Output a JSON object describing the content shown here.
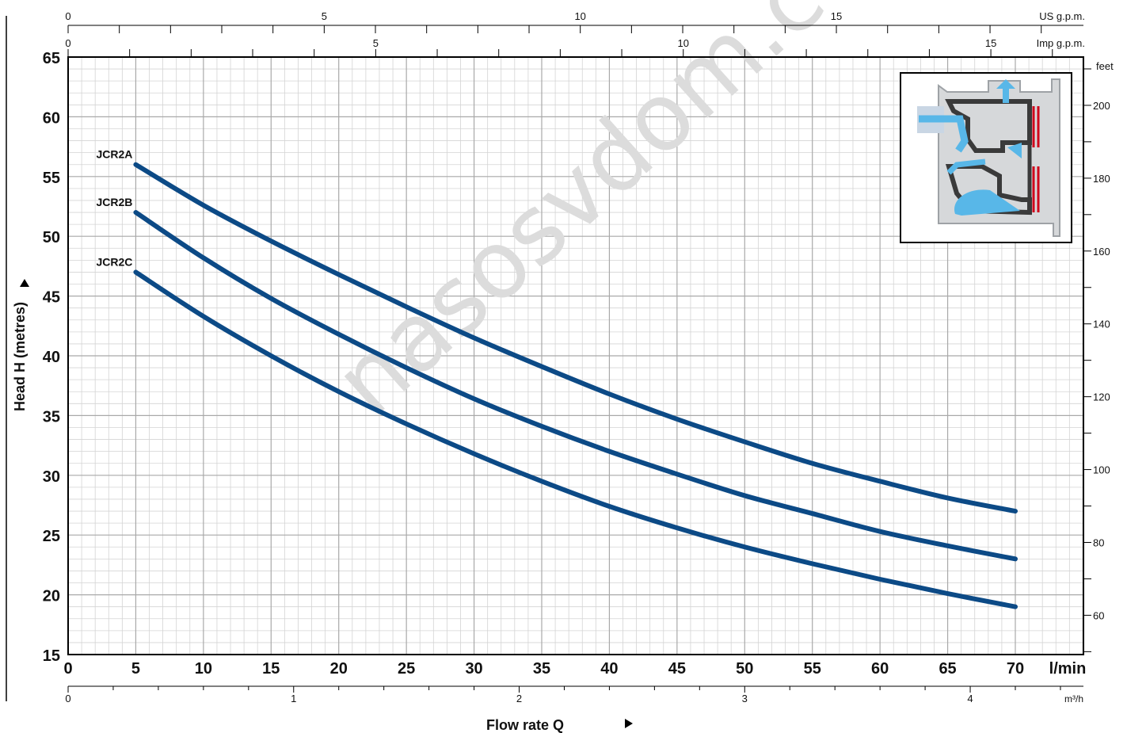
{
  "watermark": "nasosvdom.com.ua",
  "chart_data": {
    "type": "line",
    "title": "",
    "xlabel": "Flow rate Q",
    "ylabel": "Head H (metres)",
    "x_unit": "l/min",
    "xlim": [
      0,
      75
    ],
    "ylim": [
      15,
      65
    ],
    "x_ticks": [
      0,
      5,
      10,
      15,
      20,
      25,
      30,
      35,
      40,
      45,
      50,
      55,
      60,
      65,
      70
    ],
    "y_ticks": [
      15,
      20,
      25,
      30,
      35,
      40,
      45,
      50,
      55,
      60,
      65
    ],
    "grid": true,
    "series": [
      {
        "name": "JCR2A",
        "x": [
          5,
          10,
          15,
          20,
          25,
          30,
          35,
          40,
          45,
          50,
          55,
          60,
          65,
          70
        ],
        "values": [
          56,
          52.6,
          49.6,
          46.8,
          44.1,
          41.5,
          39.1,
          36.8,
          34.7,
          32.8,
          31.0,
          29.5,
          28.1,
          27.0
        ]
      },
      {
        "name": "JCR2B",
        "x": [
          5,
          10,
          15,
          20,
          25,
          30,
          35,
          40,
          45,
          50,
          55,
          60,
          65,
          70
        ],
        "values": [
          52,
          48.2,
          44.8,
          41.8,
          39.0,
          36.4,
          34.1,
          32.0,
          30.1,
          28.3,
          26.8,
          25.3,
          24.1,
          23.0
        ]
      },
      {
        "name": "JCR2C",
        "x": [
          5,
          10,
          15,
          20,
          25,
          30,
          35,
          40,
          45,
          50,
          55,
          60,
          65,
          70
        ],
        "values": [
          47,
          43.3,
          40.0,
          37.0,
          34.3,
          31.8,
          29.5,
          27.4,
          25.6,
          24.0,
          22.6,
          21.3,
          20.1,
          19.0
        ]
      }
    ],
    "secondary_axes": {
      "us_gpm": {
        "label": "US g.p.m.",
        "ticks": [
          0,
          5,
          10,
          15
        ]
      },
      "imp_gpm": {
        "label": "Imp g.p.m.",
        "ticks": [
          0,
          5,
          10,
          15
        ]
      },
      "m3h": {
        "label": "m³/h",
        "ticks": [
          0,
          1,
          2,
          3,
          4
        ]
      },
      "feet": {
        "label": "feet",
        "ticks": [
          60,
          80,
          100,
          120,
          140,
          160,
          180,
          200
        ]
      }
    },
    "colors": {
      "curve": "#0c4a86",
      "grid": "#bfbfbf",
      "frame": "#000000"
    }
  }
}
